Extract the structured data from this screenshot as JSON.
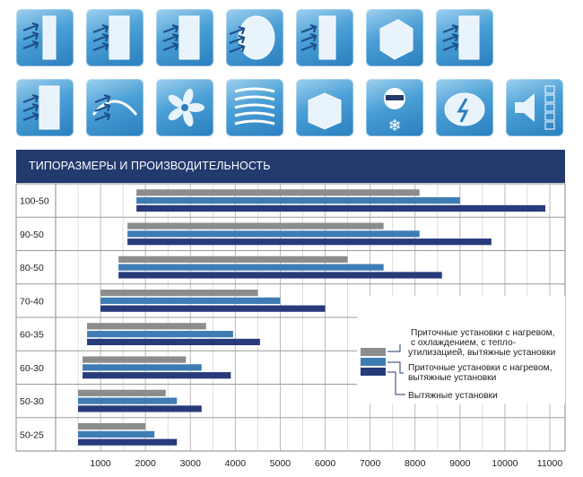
{
  "icons_row1": [
    "heater-filter-icon",
    "fan-filter-icon",
    "water-heater-icon",
    "rotary-heat-exchanger-icon",
    "cooling-filter-icon",
    "plate-heat-exchanger-icon",
    "electric-heater-icon"
  ],
  "icons_row2": [
    "humidifier-icon",
    "airflow-mixing-icon",
    "fan-impeller-icon",
    "silencer-icon",
    "casing-box-icon",
    "sun-snow-climate-icon",
    "electric-motor-icon",
    "sound-level-icon"
  ],
  "header": {
    "title": "ТИПОРАЗМЕРЫ И ПРОИЗВОДИТЕЛЬНОСТЬ"
  },
  "colors": {
    "header_bg": "#223a6e",
    "gray": "#8c8c8c",
    "blue": "#3e7cb4",
    "navy": "#273b7a"
  },
  "chart_data": {
    "type": "bar",
    "orientation": "horizontal",
    "categories": [
      "100-50",
      "90-50",
      "80-50",
      "70-40",
      "60-35",
      "60-30",
      "50-30",
      "50-25"
    ],
    "x_ticks": [
      "1000",
      "2000",
      "3000",
      "4000",
      "5000",
      "6000",
      "7000",
      "8000",
      "9000",
      "10000",
      "11000"
    ],
    "xlim": [
      0,
      11000
    ],
    "series": [
      {
        "name": "Приточные установки с нагревом, с охлаждением, с тепло-утилизацией, вытяжные установки",
        "color": "#8c8c8c",
        "values": [
          [
            1800,
            8100
          ],
          [
            1600,
            7300
          ],
          [
            1400,
            6500
          ],
          [
            1000,
            4500
          ],
          [
            700,
            3350
          ],
          [
            600,
            2900
          ],
          [
            500,
            2450
          ],
          [
            500,
            2000
          ]
        ]
      },
      {
        "name": "Приточные установки с нагревом, вытяжные установки",
        "color": "#3e7cb4",
        "values": [
          [
            1800,
            9000
          ],
          [
            1600,
            8100
          ],
          [
            1400,
            7300
          ],
          [
            1000,
            5000
          ],
          [
            700,
            3950
          ],
          [
            600,
            3250
          ],
          [
            500,
            2700
          ],
          [
            500,
            2200
          ]
        ]
      },
      {
        "name": "Вытяжные установки",
        "color": "#273b7a",
        "values": [
          [
            1800,
            10900
          ],
          [
            1600,
            9700
          ],
          [
            1400,
            8600
          ],
          [
            1000,
            6000
          ],
          [
            700,
            4550
          ],
          [
            600,
            3900
          ],
          [
            500,
            3250
          ],
          [
            500,
            2700
          ]
        ]
      }
    ],
    "legend": {
      "placement": "right-center",
      "labels": [
        "Приточные установки с нагревом,",
        "с охлаждением, с тепло-",
        "утилизацией, вытяжные установки",
        "Приточные установки с нагревом,",
        "вытяжные установки",
        "Вытяжные установки"
      ]
    },
    "grid": true
  }
}
